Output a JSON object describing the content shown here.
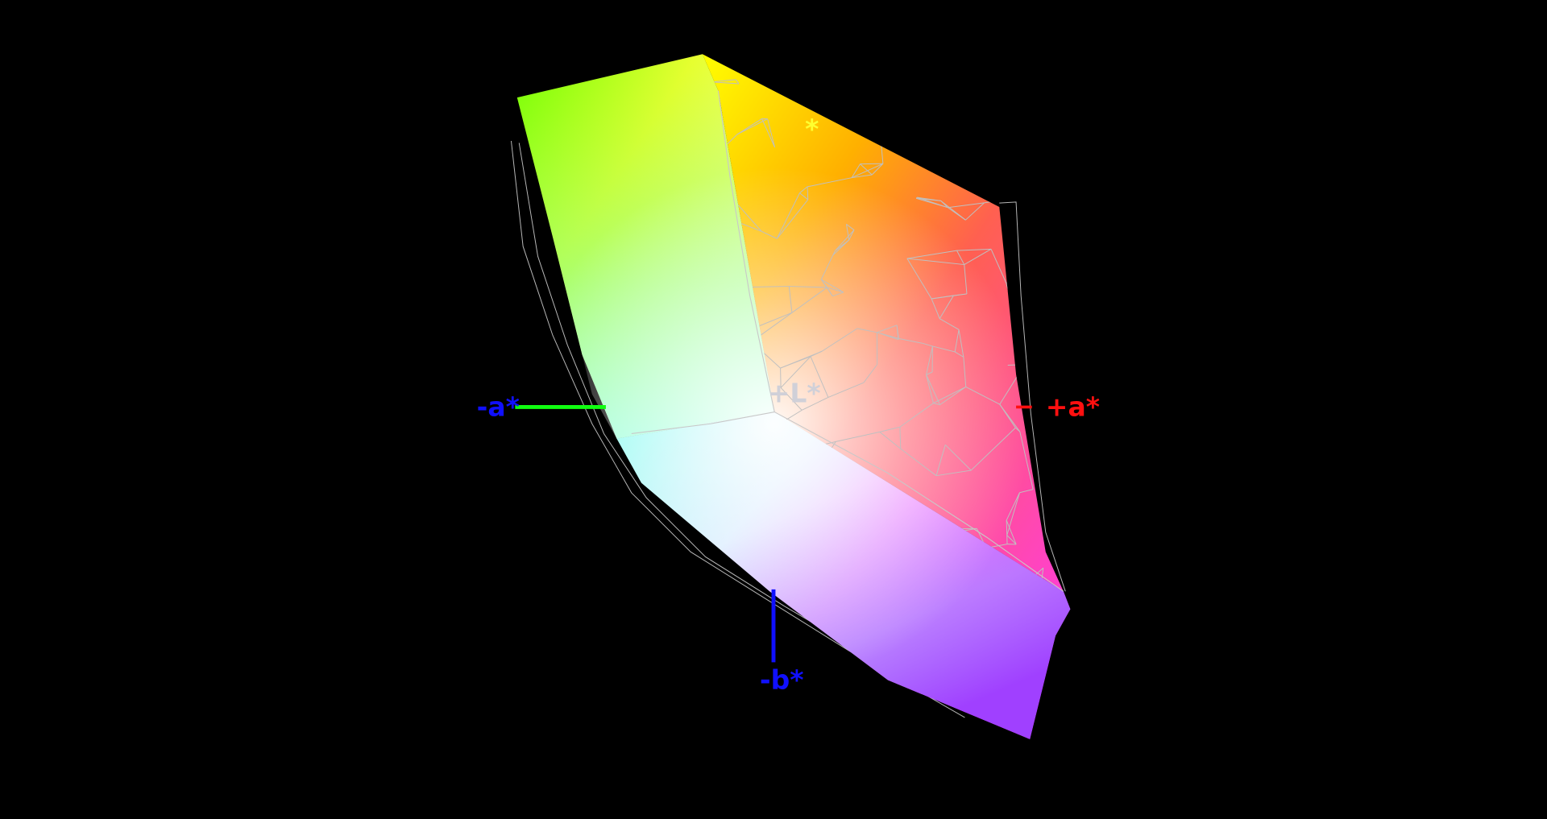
{
  "axes": {
    "neg_a": {
      "label": "-a*",
      "color": "#1010ff",
      "line_color": "#10ff10"
    },
    "pos_a": {
      "label": "+a*",
      "color": "#ff1010",
      "line_color": "#ff1010"
    },
    "neg_b": {
      "label": "-b*",
      "color": "#1010ff",
      "line_color": "#1010ff"
    },
    "pos_L": {
      "label": "+L*",
      "color": "#d0d0d8"
    },
    "pos_b": {
      "label": "*",
      "color": "#ffff30"
    }
  },
  "colors": {
    "background": "#000000",
    "wireframe": "#b8b8b8"
  }
}
